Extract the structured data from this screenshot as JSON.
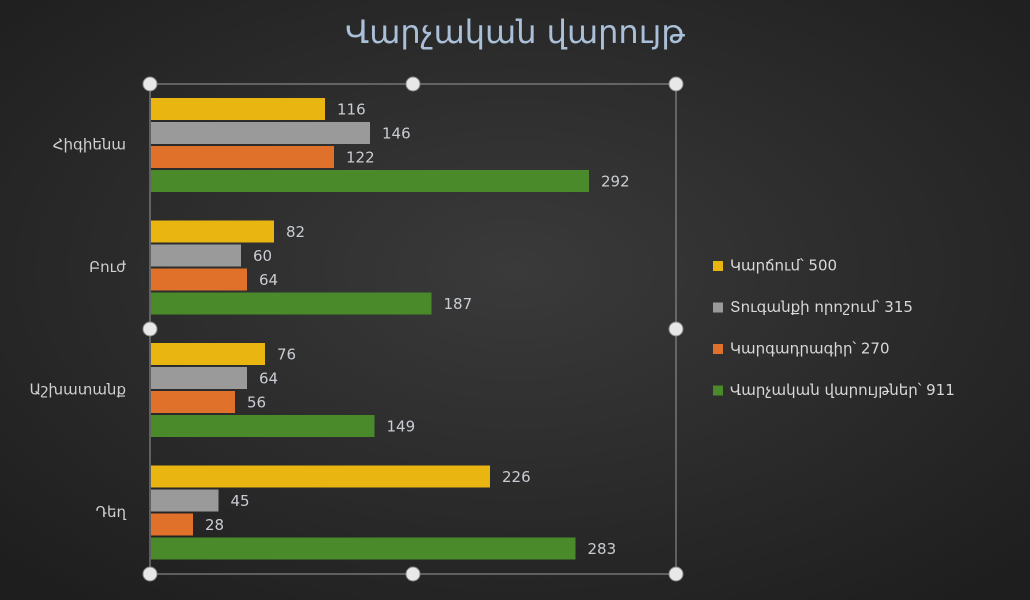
{
  "chart_data": {
    "type": "hbar",
    "title": "Վարչական վարույթ",
    "categories": [
      "Հիգիենա",
      "Բուժ",
      "Աշխատանք",
      "Դեղ"
    ],
    "series": [
      {
        "name": "Կարճում՝ 500",
        "color": "#e8b511",
        "values": [
          116,
          82,
          76,
          226
        ]
      },
      {
        "name": "Տուգանքի որոշում՝ 315",
        "color": "#9a9a9a",
        "values": [
          146,
          60,
          64,
          45
        ]
      },
      {
        "name": "Կարգադրագիր՝ 270",
        "color": "#e0712a",
        "values": [
          122,
          64,
          56,
          28
        ]
      },
      {
        "name": "Վարչական վարույթներ՝ 911",
        "color": "#4a8a2a",
        "values": [
          292,
          187,
          149,
          283
        ]
      }
    ],
    "legend": "right"
  }
}
